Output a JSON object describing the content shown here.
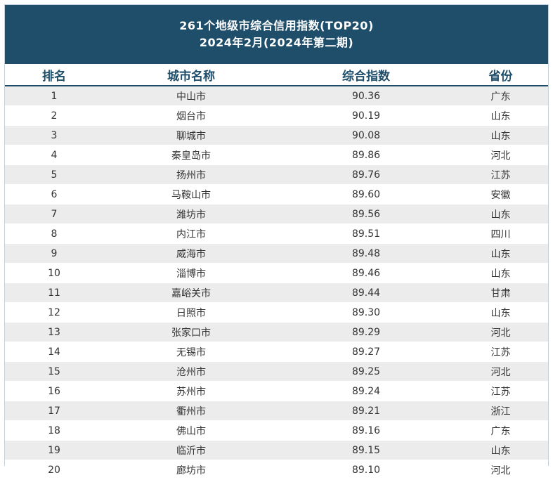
{
  "header": {
    "title_line1": "261个地级市综合信用指数(TOP20)",
    "title_line2": "2024年2月(2024年第二期)"
  },
  "table": {
    "columns": [
      "排名",
      "城市名称",
      "综合指数",
      "省份"
    ],
    "rows": [
      {
        "rank": "1",
        "city": "中山市",
        "score": "90.36",
        "province": "广东"
      },
      {
        "rank": "2",
        "city": "烟台市",
        "score": "90.19",
        "province": "山东"
      },
      {
        "rank": "3",
        "city": "聊城市",
        "score": "90.08",
        "province": "山东"
      },
      {
        "rank": "4",
        "city": "秦皇岛市",
        "score": "89.86",
        "province": "河北"
      },
      {
        "rank": "5",
        "city": "扬州市",
        "score": "89.76",
        "province": "江苏"
      },
      {
        "rank": "6",
        "city": "马鞍山市",
        "score": "89.60",
        "province": "安徽"
      },
      {
        "rank": "7",
        "city": "潍坊市",
        "score": "89.56",
        "province": "山东"
      },
      {
        "rank": "8",
        "city": "内江市",
        "score": "89.51",
        "province": "四川"
      },
      {
        "rank": "9",
        "city": "威海市",
        "score": "89.48",
        "province": "山东"
      },
      {
        "rank": "10",
        "city": "淄博市",
        "score": "89.46",
        "province": "山东"
      },
      {
        "rank": "11",
        "city": "嘉峪关市",
        "score": "89.44",
        "province": "甘肃"
      },
      {
        "rank": "12",
        "city": "日照市",
        "score": "89.30",
        "province": "山东"
      },
      {
        "rank": "13",
        "city": "张家口市",
        "score": "89.29",
        "province": "河北"
      },
      {
        "rank": "14",
        "city": "无锡市",
        "score": "89.27",
        "province": "江苏"
      },
      {
        "rank": "15",
        "city": "沧州市",
        "score": "89.25",
        "province": "河北"
      },
      {
        "rank": "16",
        "city": "苏州市",
        "score": "89.24",
        "province": "江苏"
      },
      {
        "rank": "17",
        "city": "衢州市",
        "score": "89.21",
        "province": "浙江"
      },
      {
        "rank": "18",
        "city": "佛山市",
        "score": "89.16",
        "province": "广东"
      },
      {
        "rank": "19",
        "city": "临沂市",
        "score": "89.15",
        "province": "山东"
      },
      {
        "rank": "20",
        "city": "廊坊市",
        "score": "89.10",
        "province": "河北"
      }
    ]
  },
  "colors": {
    "header_bg": "#1f4e6b",
    "header_text": "#ffffff",
    "row_stripe": "#ececec",
    "body_text": "#333333"
  }
}
